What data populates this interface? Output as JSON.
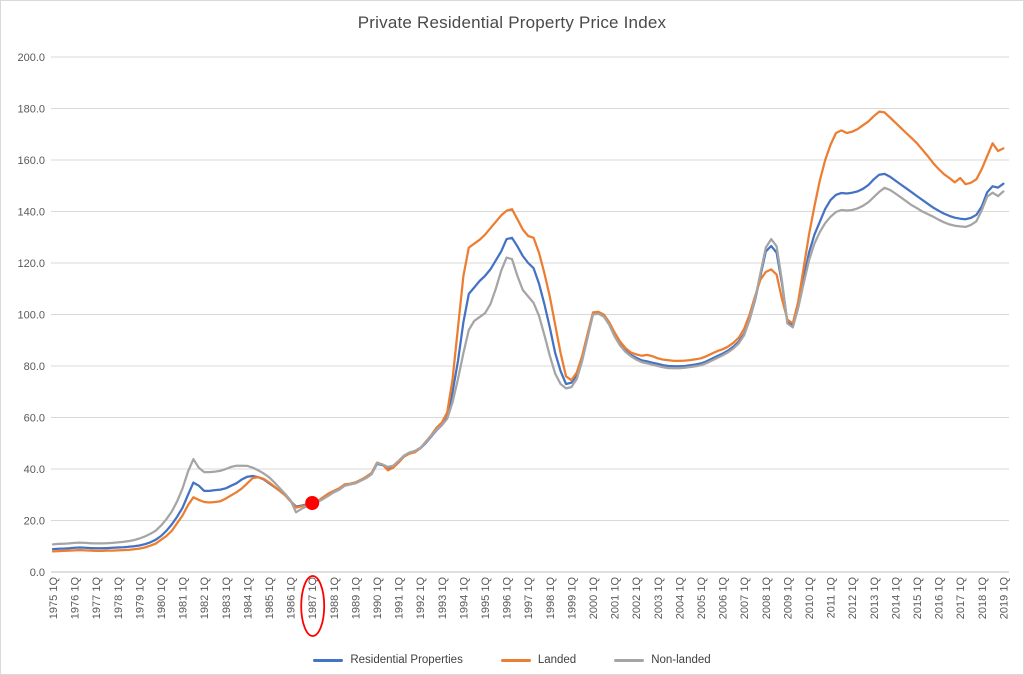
{
  "title": "Private Residential Property Price Index",
  "colors": {
    "residential": "#4472C4",
    "landed": "#ED7D31",
    "nonlanded": "#A5A5A5",
    "annotation_red": "#FF0000",
    "gridline": "#D9D9D9",
    "axis_line": "#BFBFBF",
    "axis_text": "#595959",
    "title_text": "#4A4A4A"
  },
  "annotations": {
    "circled_x_label": "1987 1Q",
    "marker_series": "Residential Properties",
    "marker_x_label": "1987 1Q",
    "marker_value": 26.8
  },
  "legend": {
    "item1": "Residential Properties",
    "item2": "Landed",
    "item3": "Non-landed"
  },
  "chart_data": {
    "type": "line",
    "title": "Private Residential Property Price Index",
    "xlabel": "",
    "ylabel": "",
    "ylim": [
      0,
      200
    ],
    "y_tick_step": 20,
    "y_tick_labels": [
      "0.0",
      "20.0",
      "40.0",
      "60.0",
      "80.0",
      "100.0",
      "120.0",
      "140.0",
      "160.0",
      "180.0",
      "200.0"
    ],
    "grid": true,
    "legend_position": "bottom",
    "x_tick_every_quarters": 4,
    "x_tick_labels": [
      "1975 1Q",
      "1976 1Q",
      "1977 1Q",
      "1978 1Q",
      "1979 1Q",
      "1980 1Q",
      "1981 1Q",
      "1982 1Q",
      "1983 1Q",
      "1984 1Q",
      "1985 1Q",
      "1986 1Q",
      "1987 1Q",
      "1988 1Q",
      "1989 1Q",
      "1990 1Q",
      "1991 1Q",
      "1992 1Q",
      "1993 1Q",
      "1994 1Q",
      "1995 1Q",
      "1996 1Q",
      "1997 1Q",
      "1998 1Q",
      "1999 1Q",
      "2000 1Q",
      "2001 1Q",
      "2002 1Q",
      "2003 1Q",
      "2004 1Q",
      "2005 1Q",
      "2006 1Q",
      "2007 1Q",
      "2008 1Q",
      "2009 1Q",
      "2010 1Q",
      "2011 1Q",
      "2012 1Q",
      "2013 1Q",
      "2014 1Q",
      "2015 1Q",
      "2016 1Q",
      "2017 1Q",
      "2018 1Q",
      "2019 1Q"
    ],
    "marker": {
      "series": "Residential Properties",
      "x_label": "1987 1Q",
      "x_index": 48,
      "value": 26.8
    },
    "series": [
      {
        "name": "Residential Properties",
        "color": "#4472C4",
        "values": [
          8.9,
          9.0,
          9.1,
          9.2,
          9.4,
          9.5,
          9.4,
          9.3,
          9.2,
          9.2,
          9.3,
          9.4,
          9.5,
          9.6,
          9.8,
          10.0,
          10.3,
          10.8,
          11.5,
          12.5,
          14.0,
          16.0,
          18.5,
          21.5,
          25.0,
          30.0,
          34.7,
          33.5,
          31.5,
          31.5,
          31.8,
          32.0,
          32.5,
          33.5,
          34.5,
          36.0,
          37.0,
          37.3,
          36.8,
          36.0,
          34.5,
          33.0,
          31.5,
          29.8,
          27.5,
          25.4,
          25.8,
          26.2,
          26.8,
          27.5,
          28.5,
          29.8,
          31.0,
          32.0,
          33.5,
          34.0,
          34.5,
          35.5,
          36.5,
          38.0,
          42.0,
          41.5,
          40.5,
          41.0,
          43.0,
          45.0,
          46.2,
          46.8,
          48.0,
          50.0,
          52.5,
          55.0,
          57.0,
          60.0,
          70.0,
          82.0,
          97.0,
          108.0,
          110.5,
          113.0,
          115.0,
          117.5,
          121.0,
          124.5,
          129.3,
          129.8,
          126.5,
          122.7,
          120.0,
          118.0,
          112.0,
          104.0,
          95.0,
          85.0,
          78.0,
          73.0,
          73.5,
          76.5,
          83.0,
          92.0,
          100.3,
          100.6,
          99.5,
          96.5,
          92.0,
          88.5,
          86.0,
          84.3,
          83.2,
          82.2,
          81.8,
          81.3,
          80.8,
          80.3,
          80.0,
          79.9,
          79.9,
          80.0,
          80.3,
          80.6,
          81.0,
          81.8,
          82.8,
          83.8,
          84.8,
          86.0,
          87.5,
          89.5,
          92.5,
          98.0,
          105.5,
          115.0,
          124.5,
          126.6,
          124.0,
          112.0,
          97.0,
          96.0,
          104.0,
          114.0,
          124.0,
          131.0,
          136.0,
          141.0,
          144.5,
          146.5,
          147.2,
          147.0,
          147.3,
          147.8,
          148.8,
          150.3,
          152.5,
          154.3,
          154.6,
          153.5,
          152.0,
          150.5,
          149.0,
          147.5,
          146.0,
          144.5,
          143.0,
          141.5,
          140.3,
          139.2,
          138.3,
          137.6,
          137.2,
          137.0,
          137.5,
          138.7,
          142.0,
          147.5,
          149.8,
          149.3,
          150.8
        ]
      },
      {
        "name": "Landed",
        "color": "#ED7D31",
        "values": [
          8.0,
          8.1,
          8.2,
          8.3,
          8.4,
          8.5,
          8.4,
          8.3,
          8.2,
          8.2,
          8.3,
          8.3,
          8.4,
          8.5,
          8.6,
          8.8,
          9.1,
          9.5,
          10.2,
          11.0,
          12.5,
          14.0,
          16.0,
          19.0,
          22.0,
          26.0,
          29.0,
          28.0,
          27.2,
          27.0,
          27.2,
          27.5,
          28.5,
          29.8,
          31.0,
          32.5,
          34.5,
          36.5,
          36.8,
          36.2,
          34.8,
          33.2,
          31.5,
          29.8,
          27.5,
          25.0,
          25.5,
          26.0,
          26.5,
          27.5,
          29.0,
          30.5,
          31.5,
          32.5,
          34.0,
          34.3,
          34.8,
          35.8,
          37.0,
          38.5,
          42.5,
          41.8,
          39.5,
          40.5,
          42.5,
          44.8,
          46.0,
          46.5,
          48.0,
          50.5,
          53.0,
          56.0,
          58.0,
          62.0,
          75.0,
          95.0,
          115.0,
          126.0,
          127.5,
          129.0,
          131.0,
          133.5,
          136.0,
          138.5,
          140.3,
          140.9,
          137.0,
          133.0,
          130.5,
          129.8,
          124.0,
          116.0,
          107.0,
          96.0,
          85.0,
          76.0,
          74.5,
          77.5,
          84.0,
          92.5,
          100.8,
          101.0,
          100.0,
          97.0,
          93.0,
          89.5,
          87.0,
          85.3,
          84.5,
          84.0,
          84.3,
          83.8,
          83.0,
          82.5,
          82.2,
          82.0,
          82.0,
          82.1,
          82.3,
          82.6,
          83.0,
          83.8,
          84.8,
          85.8,
          86.5,
          87.5,
          89.0,
          91.0,
          94.5,
          100.0,
          107.0,
          113.5,
          116.5,
          117.5,
          115.5,
          106.0,
          98.0,
          96.5,
          105.0,
          118.0,
          131.0,
          142.0,
          152.0,
          160.0,
          166.0,
          170.5,
          171.5,
          170.5,
          171.0,
          172.0,
          173.5,
          175.0,
          177.0,
          178.8,
          178.5,
          176.5,
          174.5,
          172.5,
          170.5,
          168.5,
          166.5,
          164.0,
          161.5,
          158.8,
          156.5,
          154.5,
          153.0,
          151.3,
          153.0,
          150.6,
          151.2,
          152.5,
          156.5,
          161.5,
          166.5,
          163.5,
          164.5
        ]
      },
      {
        "name": "Non-landed",
        "color": "#A5A5A5",
        "values": [
          10.7,
          10.9,
          11.0,
          11.1,
          11.3,
          11.4,
          11.3,
          11.2,
          11.1,
          11.1,
          11.2,
          11.3,
          11.5,
          11.7,
          12.0,
          12.4,
          13.0,
          13.8,
          14.8,
          16.0,
          18.0,
          20.5,
          23.5,
          27.5,
          32.5,
          39.0,
          43.8,
          40.5,
          38.8,
          38.8,
          39.0,
          39.3,
          40.0,
          40.8,
          41.3,
          41.3,
          41.2,
          40.5,
          39.5,
          38.3,
          36.8,
          34.8,
          32.5,
          30.3,
          27.8,
          23.2,
          24.5,
          25.5,
          26.3,
          27.2,
          28.3,
          29.6,
          31.0,
          32.0,
          33.5,
          34.0,
          34.5,
          35.5,
          36.5,
          38.0,
          42.3,
          41.8,
          40.8,
          41.3,
          43.2,
          45.2,
          46.4,
          47.0,
          48.2,
          50.2,
          52.8,
          55.2,
          57.0,
          59.5,
          66.0,
          75.0,
          85.0,
          94.0,
          97.5,
          99.0,
          100.5,
          104.0,
          110.0,
          117.0,
          122.1,
          121.5,
          115.0,
          109.5,
          107.0,
          104.5,
          99.5,
          92.0,
          84.0,
          77.0,
          73.0,
          71.3,
          71.8,
          75.0,
          82.0,
          91.0,
          100.0,
          100.3,
          99.2,
          96.0,
          91.5,
          88.0,
          85.5,
          83.8,
          82.5,
          81.5,
          81.0,
          80.5,
          80.0,
          79.5,
          79.2,
          79.1,
          79.1,
          79.3,
          79.6,
          79.9,
          80.3,
          81.1,
          82.1,
          83.1,
          84.1,
          85.3,
          86.8,
          88.8,
          92.0,
          98.0,
          106.0,
          116.0,
          126.0,
          129.3,
          126.5,
          113.0,
          96.5,
          95.0,
          102.5,
          112.0,
          121.0,
          127.5,
          132.0,
          135.5,
          138.0,
          139.8,
          140.6,
          140.4,
          140.6,
          141.2,
          142.2,
          143.6,
          145.6,
          147.6,
          149.2,
          148.4,
          147.0,
          145.5,
          144.0,
          142.5,
          141.3,
          140.0,
          139.0,
          138.0,
          136.8,
          135.8,
          135.0,
          134.5,
          134.2,
          134.0,
          134.8,
          136.2,
          140.5,
          145.8,
          147.3,
          146.0,
          147.8
        ]
      }
    ]
  }
}
